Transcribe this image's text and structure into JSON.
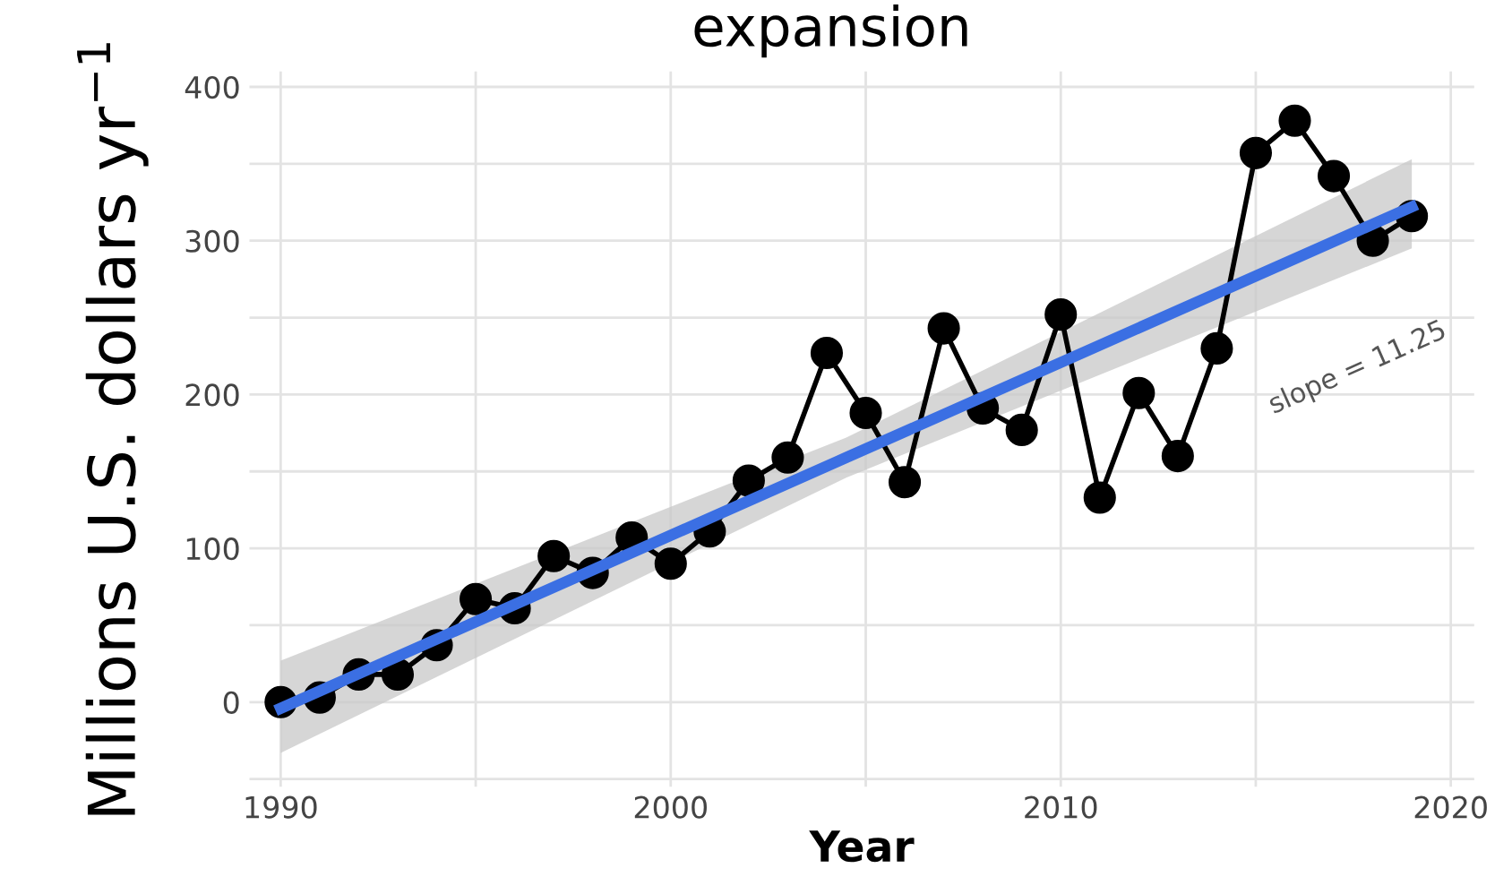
{
  "chart_data": {
    "type": "line",
    "title": "expansion",
    "xlabel": "Year",
    "ylabel": "Millions U.S. dollars yr$^{−1}$",
    "x": [
      1990,
      1991,
      1992,
      1993,
      1994,
      1995,
      1996,
      1997,
      1998,
      1999,
      2000,
      2001,
      2002,
      2003,
      2004,
      2005,
      2006,
      2007,
      2008,
      2009,
      2010,
      2011,
      2012,
      2013,
      2014,
      2015,
      2016,
      2017,
      2018,
      2019
    ],
    "series": [
      {
        "color": "#000000",
        "marker": "circle",
        "values": [
          0,
          3,
          18,
          18,
          37,
          67,
          61,
          95,
          84,
          107,
          90,
          111,
          144,
          159,
          227,
          188,
          143,
          243,
          191,
          177,
          252,
          133,
          201,
          160,
          230,
          357,
          378,
          342,
          300,
          316
        ]
      },
      {
        "type": "line",
        "color": "#3b6fe3",
        "marker": "none",
        "x": [
          1990,
          2004.5,
          2019
        ],
        "values": [
          -4,
          159,
          322
        ],
        "lower": [
          -33,
          146,
          295
        ],
        "upper": [
          27,
          172,
          353
        ]
      }
    ],
    "annotations": [
      "slope = 11.25"
    ],
    "xlim": [
      1989.2,
      2020.6
    ],
    "ylim": [
      -55,
      410
    ],
    "xticks": [
      1990,
      {
        "value": 1995,
        "label": null
      },
      2000,
      {
        "value": 2005,
        "label": null
      },
      2010,
      {
        "value": 2015,
        "label": null
      },
      2020
    ],
    "yticks": [
      {
        "value": -50,
        "label": null
      },
      0,
      {
        "value": 50,
        "label": null
      },
      100,
      {
        "value": 150,
        "label": null
      },
      200,
      {
        "value": 250,
        "label": null
      },
      300,
      {
        "value": 350,
        "label": null
      },
      400
    ],
    "grid": true,
    "legend": false
  }
}
